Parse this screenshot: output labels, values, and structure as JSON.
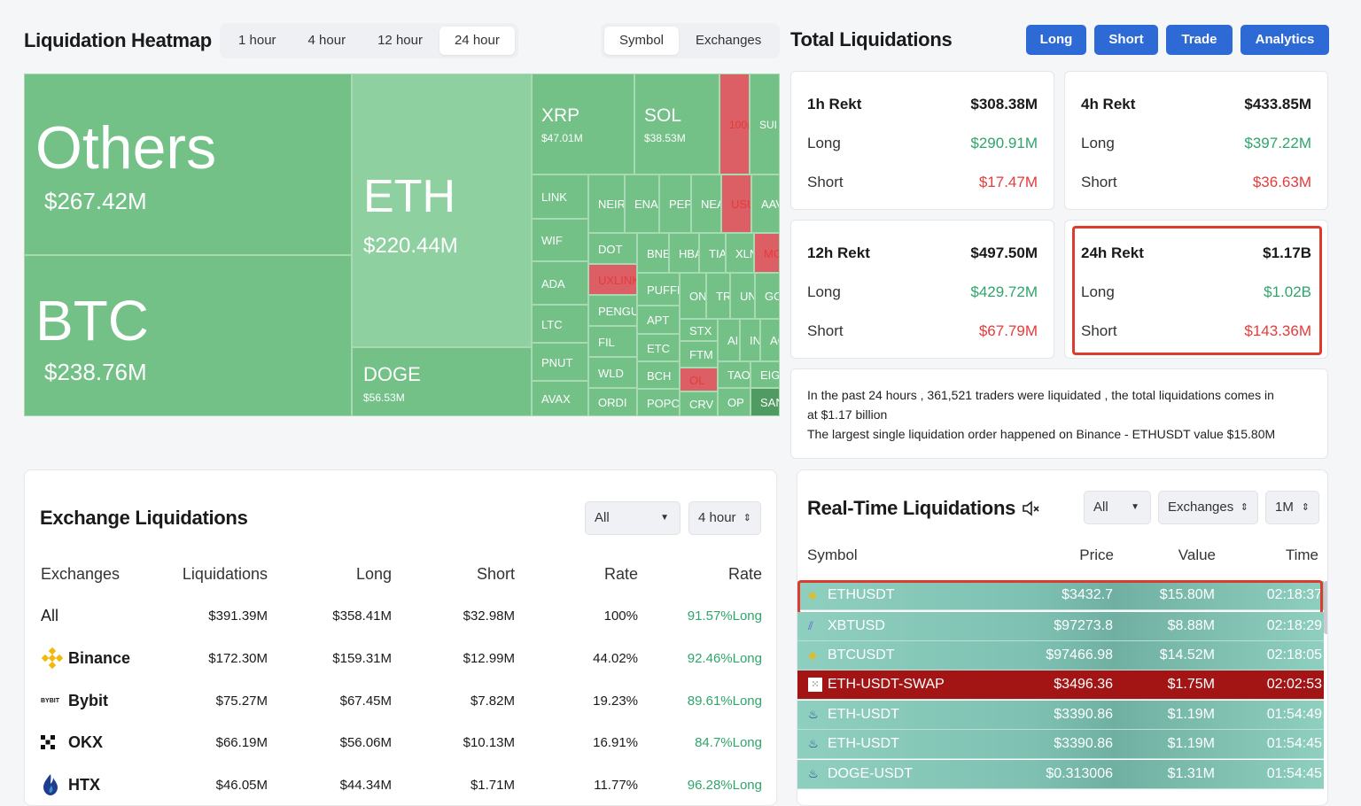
{
  "heatmap": {
    "title": "Liquidation Heatmap",
    "time_tabs": [
      "1 hour",
      "4 hour",
      "12 hour",
      "24 hour"
    ],
    "active_time_tab": "24 hour",
    "view_tabs": [
      "Symbol",
      "Exchanges"
    ],
    "active_view_tab": "Symbol",
    "others": {
      "name": "Others",
      "value": "$267.42M"
    },
    "btc": {
      "name": "BTC",
      "value": "$238.76M"
    },
    "eth": {
      "name": "ETH",
      "value": "$220.44M"
    },
    "doge": {
      "name": "DOGE",
      "value": "$56.53M"
    },
    "xrp": {
      "name": "XRP",
      "value": "$47.01M"
    },
    "sol": {
      "name": "SOL",
      "value": "$38.53M"
    },
    "small": {
      "c100": "100(",
      "sui": "SUI",
      "link": "LINK",
      "neir": "NEIR",
      "ena": "ENA",
      "pep": "PEP",
      "nea": "NEA",
      "usu": "USU",
      "aav": "AAV",
      "wif": "WIF",
      "dot": "DOT",
      "bnb": "BNE",
      "hba": "HBA",
      "tia": "TIA",
      "xlm": "XLN",
      "mo": "MO",
      "ada": "ADA",
      "uxlink": "UXLINK",
      "puffe": "PUFFE",
      "on": "ON",
      "tr": "TR",
      "un": "UN",
      "go": "GO",
      "ltc": "LTC",
      "pengu": "PENGU",
      "apt": "APT",
      "stx": "STX",
      "ai": "AI",
      "in": "IN",
      "ac": "AC",
      "pnut": "PNUT",
      "fil": "FIL",
      "etc": "ETC",
      "ftm": "FTM",
      "wld": "WLD",
      "bch": "BCH",
      "ol": "OL",
      "tao": "TAO",
      "eig": "EIG",
      "avax": "AVAX",
      "ordi": "ORDI",
      "popc": "POPC",
      "crv": "CRV",
      "op": "OP",
      "san": "SAN"
    }
  },
  "totals": {
    "title": "Total Liquidations",
    "buttons": [
      "Long",
      "Short",
      "Trade",
      "Analytics"
    ],
    "cards": [
      {
        "label": "1h Rekt",
        "total": "$308.38M",
        "long_label": "Long",
        "long": "$290.91M",
        "short_label": "Short",
        "short": "$17.47M"
      },
      {
        "label": "4h Rekt",
        "total": "$433.85M",
        "long_label": "Long",
        "long": "$397.22M",
        "short_label": "Short",
        "short": "$36.63M"
      },
      {
        "label": "12h Rekt",
        "total": "$497.50M",
        "long_label": "Long",
        "long": "$429.72M",
        "short_label": "Short",
        "short": "$67.79M"
      },
      {
        "label": "24h Rekt",
        "total": "$1.17B",
        "long_label": "Long",
        "long": "$1.02B",
        "short_label": "Short",
        "short": "$143.36M"
      }
    ],
    "summary_line1": "In the past 24 hours , 361,521 traders were liquidated , the total liquidations comes in",
    "summary_line2": "at $1.17 billion",
    "summary_line3": "The largest single liquidation order happened on Binance - ETHUSDT value $15.80M"
  },
  "exchange": {
    "title": "Exchange Liquidations",
    "filter": "All",
    "period": "4 hour",
    "headers": [
      "Exchanges",
      "Liquidations",
      "Long",
      "Short",
      "Rate",
      "Rate"
    ],
    "rows": [
      {
        "name": "All",
        "liq": "$391.39M",
        "long": "$358.41M",
        "short": "$32.98M",
        "rate": "100%",
        "long_rate": "91.57%Long"
      },
      {
        "name": "Binance",
        "liq": "$172.30M",
        "long": "$159.31M",
        "short": "$12.99M",
        "rate": "44.02%",
        "long_rate": "92.46%Long"
      },
      {
        "name": "Bybit",
        "liq": "$75.27M",
        "long": "$67.45M",
        "short": "$7.82M",
        "rate": "19.23%",
        "long_rate": "89.61%Long"
      },
      {
        "name": "OKX",
        "liq": "$66.19M",
        "long": "$56.06M",
        "short": "$10.13M",
        "rate": "16.91%",
        "long_rate": "84.7%Long"
      },
      {
        "name": "HTX",
        "liq": "$46.05M",
        "long": "$44.34M",
        "short": "$1.71M",
        "rate": "11.77%",
        "long_rate": "96.28%Long"
      }
    ],
    "bybit_logo_text": "BYBIT"
  },
  "realtime": {
    "title": "Real-Time Liquidations",
    "filter": "All",
    "exchanges": "Exchanges",
    "min": "1M",
    "headers": [
      "Symbol",
      "Price",
      "Value",
      "Time"
    ],
    "rows": [
      {
        "symbol": "ETHUSDT",
        "price": "$3432.7",
        "value": "$15.80M",
        "time": "02:18:37"
      },
      {
        "symbol": "XBTUSD",
        "price": "$97273.8",
        "value": "$8.88M",
        "time": "02:18:29"
      },
      {
        "symbol": "BTCUSDT",
        "price": "$97466.98",
        "value": "$14.52M",
        "time": "02:18:05"
      },
      {
        "symbol": "ETH-USDT-SWAP",
        "price": "$3496.36",
        "value": "$1.75M",
        "time": "02:02:53"
      },
      {
        "symbol": "ETH-USDT",
        "price": "$3390.86",
        "value": "$1.19M",
        "time": "01:54:49"
      },
      {
        "symbol": "ETH-USDT",
        "price": "$3390.86",
        "value": "$1.19M",
        "time": "01:54:45"
      },
      {
        "symbol": "DOGE-USDT",
        "price": "$0.313006",
        "value": "$1.31M",
        "time": "01:54:45"
      }
    ]
  }
}
